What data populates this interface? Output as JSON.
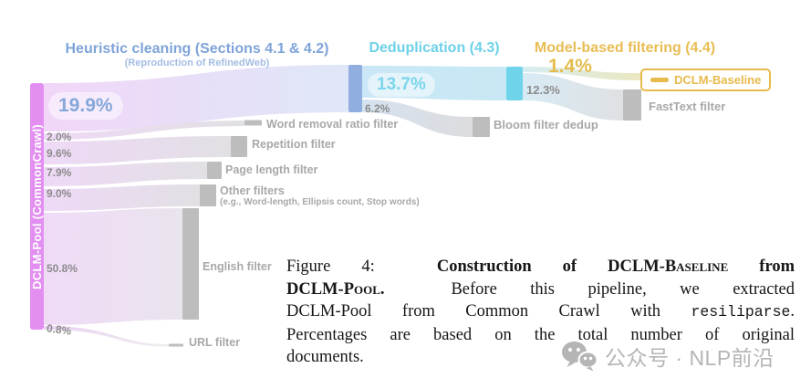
{
  "figure": {
    "headers": {
      "heuristic": "Heuristic cleaning (Sections 4.1 & 4.2)",
      "heuristic_sub": "(Reproduction of RefinedWeb)",
      "dedup": "Deduplication (4.3)",
      "model": "Model-based filtering (4.4)"
    },
    "pool_label": "DCLM-Pool (CommonCrawl)",
    "baseline_label": "DCLM-Baseline",
    "percentages": {
      "pass_heuristic": "19.9%",
      "word_removal": "2.0%",
      "repetition": "9.6%",
      "page_length": "7.9%",
      "other": "9.0%",
      "english": "50.8%",
      "url": "0.8%",
      "pass_dedup": "13.7%",
      "bloom": "6.2%",
      "fasttext": "12.3%",
      "final": "1.4%"
    },
    "filters": {
      "word_removal": "Word removal ratio filter",
      "repetition": "Repetition filter",
      "page_length": "Page length filter",
      "other": "Other filters",
      "other_sub": "(e.g., Word-length, Ellipsis count, Stop words)",
      "english": "English filter",
      "url": "URL filter",
      "bloom": "Bloom filter dedup",
      "fasttext": "FastText filter"
    }
  },
  "caption": {
    "lines": [
      [
        {
          "style": "plain",
          "text": "Figure 4:  "
        },
        {
          "style": "bold",
          "text": "Construction of DCLM-"
        },
        {
          "style": "bold_sc",
          "text": "Baseline"
        },
        {
          "style": "bold",
          "text": " from"
        }
      ],
      [
        {
          "style": "bold",
          "text": "DCLM-"
        },
        {
          "style": "bold_sc",
          "text": "Pool"
        },
        {
          "style": "bold",
          "text": ".  "
        },
        {
          "style": "plain",
          "text": "Before this pipeline, we extracted"
        }
      ],
      [
        {
          "style": "plain",
          "text": "DCLM-Pool from Common Crawl with "
        },
        {
          "style": "mono",
          "text": "resiliparse"
        },
        {
          "style": "plain",
          "text": "."
        }
      ],
      [
        {
          "style": "plain",
          "text": "Percentages are based on the total number of original"
        }
      ],
      [
        {
          "style": "plain",
          "text": "documents."
        }
      ]
    ]
  },
  "watermark": {
    "icon": "wechat-icon",
    "text": "公众号 · NLP前沿"
  },
  "colors": {
    "pool_magenta": "#e28ff1",
    "heuristic_blue": "#7ea4d9",
    "heuristic_sub_blue": "#a3bce3",
    "dedup_cyan": "#6ed1e9",
    "model_yellow": "#e9bd54",
    "node_blue": "#90aedf",
    "node_cyan": "#6fd4ea",
    "node_gray": "#bdbdbd",
    "label_gray": "#a8a8a8",
    "pct_gray": "#8c8c8c",
    "baseline_orange": "#e7ba4c",
    "watermark_gray": "#b5b5b5"
  },
  "chart_data": {
    "type": "sankey",
    "title": "Construction of DCLM-Baseline from DCLM-Pool",
    "unit": "% of total original documents",
    "stages": [
      "DCLM-Pool (CommonCrawl)",
      "Heuristic cleaning (Sections 4.1 & 4.2)",
      "Deduplication (4.3)",
      "Model-based filtering (4.4)",
      "DCLM-Baseline"
    ],
    "links": [
      {
        "source": "DCLM-Pool (CommonCrawl)",
        "target": "Heuristic cleaning pass-through",
        "value": 19.9,
        "removed": false
      },
      {
        "source": "DCLM-Pool (CommonCrawl)",
        "target": "Word removal ratio filter",
        "value": 2.0,
        "removed": true
      },
      {
        "source": "DCLM-Pool (CommonCrawl)",
        "target": "Repetition filter",
        "value": 9.6,
        "removed": true
      },
      {
        "source": "DCLM-Pool (CommonCrawl)",
        "target": "Page length filter",
        "value": 7.9,
        "removed": true
      },
      {
        "source": "DCLM-Pool (CommonCrawl)",
        "target": "Other filters (e.g., Word-length, Ellipsis count, Stop words)",
        "value": 9.0,
        "removed": true
      },
      {
        "source": "DCLM-Pool (CommonCrawl)",
        "target": "English filter",
        "value": 50.8,
        "removed": true
      },
      {
        "source": "DCLM-Pool (CommonCrawl)",
        "target": "URL filter",
        "value": 0.8,
        "removed": true
      },
      {
        "source": "Heuristic cleaning pass-through",
        "target": "Deduplication pass-through",
        "value": 13.7,
        "removed": false
      },
      {
        "source": "Heuristic cleaning pass-through",
        "target": "Bloom filter dedup",
        "value": 6.2,
        "removed": true
      },
      {
        "source": "Deduplication pass-through",
        "target": "DCLM-Baseline",
        "value": 1.4,
        "removed": false
      },
      {
        "source": "Deduplication pass-through",
        "target": "FastText filter",
        "value": 12.3,
        "removed": true
      }
    ]
  }
}
